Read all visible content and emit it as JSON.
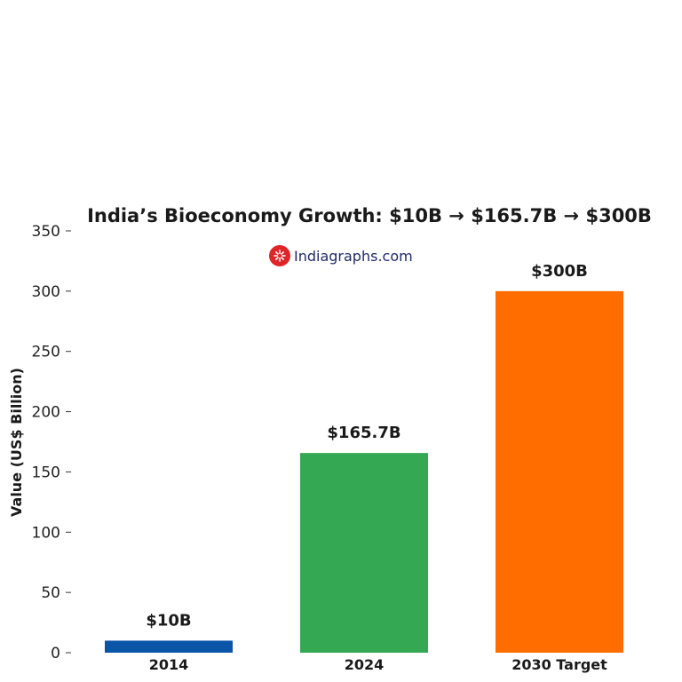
{
  "watermark": "Indiagraphs.com",
  "chart_data": {
    "type": "bar",
    "title": "India’s Bioeconomy Growth: $10B → $165.7B → $300B",
    "xlabel": "",
    "ylabel": "Value (US$ Billion)",
    "categories": [
      "2014",
      "2024",
      "2030 Target"
    ],
    "values": [
      10,
      165.7,
      300
    ],
    "data_labels": [
      "$10B",
      "$165.7B",
      "$300B"
    ],
    "colors": [
      "#0a55a8",
      "#34a853",
      "#ff6d00"
    ],
    "ylim": [
      0,
      350
    ],
    "yticks": [
      0,
      50,
      100,
      150,
      200,
      250,
      300,
      350
    ],
    "grid": false,
    "legend": "none"
  }
}
